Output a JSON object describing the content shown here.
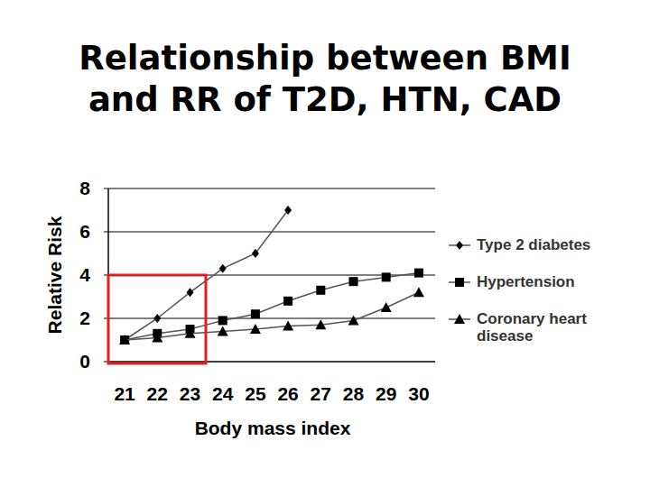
{
  "chart_data": {
    "type": "line",
    "title": "Relationship between BMI\nand RR of T2D, HTN, CAD",
    "x_label": "Body mass index",
    "y_label": "Relative Risk",
    "x": [
      21,
      22,
      23,
      24,
      25,
      26,
      27,
      28,
      29,
      30
    ],
    "xlim": [
      20.5,
      30.5
    ],
    "xticks": [
      21,
      22,
      23,
      24,
      25,
      26,
      27,
      28,
      29,
      30
    ],
    "ylim": [
      0,
      8
    ],
    "yticks": [
      0,
      2,
      4,
      6,
      8
    ],
    "grid": true,
    "legend": "right",
    "series": [
      {
        "name": "Type 2 diabetes",
        "color": "#000000",
        "marker": "diamond",
        "line_style": "solid",
        "values": [
          1,
          2,
          3.2,
          4.3,
          5,
          7,
          null,
          null,
          null,
          null
        ]
      },
      {
        "name": "Hypertension",
        "color": "#000000",
        "marker": "square",
        "line_style": "solid",
        "values": [
          1,
          1.3,
          1.5,
          1.9,
          2.2,
          2.8,
          3.3,
          3.7,
          3.9,
          4.1
        ]
      },
      {
        "name": "Coronary heart disease",
        "color": "#000000",
        "marker": "triangle",
        "line_style": "solid",
        "values": [
          1,
          1.1,
          1.3,
          1.4,
          1.5,
          1.65,
          1.7,
          1.9,
          2.5,
          3.2
        ]
      }
    ]
  }
}
